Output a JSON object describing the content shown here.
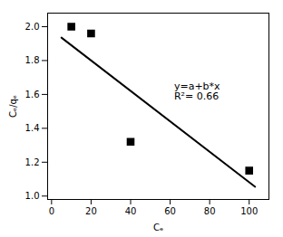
{
  "chart_data": {
    "type": "scatter",
    "xlabel": "Cₑ",
    "ylabel": "Cₑ/qₑ",
    "xlim": [
      -2,
      110
    ],
    "ylim": [
      0.98,
      2.08
    ],
    "xticks": [
      0,
      20,
      40,
      60,
      80,
      100
    ],
    "yticks": [
      {
        "value": 1.0,
        "label": "1.0"
      },
      1.2,
      1.4,
      1.6,
      1.8,
      {
        "value": 2.0,
        "label": "2.0"
      }
    ],
    "series": [
      {
        "type": "scatter",
        "marker": "square",
        "color": "black",
        "x": [
          10,
          20,
          40,
          100
        ],
        "values": [
          2.0,
          1.96,
          1.32,
          1.15
        ]
      },
      {
        "type": "line",
        "color": "black",
        "x": [
          5,
          103
        ],
        "values": [
          1.935,
          1.055
        ]
      }
    ],
    "annotations": [
      {
        "text": "y=a+b*x\nR²= 0.66",
        "x": 62,
        "y": 1.62
      }
    ]
  }
}
